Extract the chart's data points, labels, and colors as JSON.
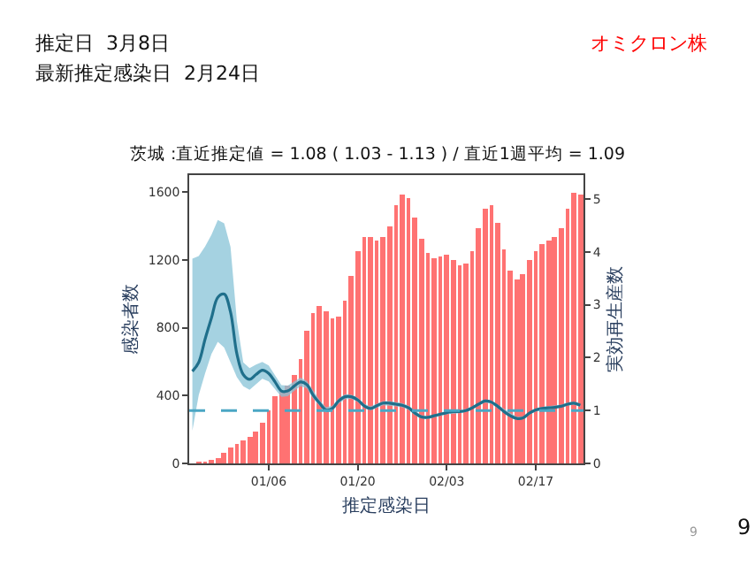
{
  "chart_data": {
    "type": "bar",
    "title": "茨城 :直近推定値 = 1.08 ( 1.03 - 1.13 ) / 直近1週平均 = 1.09",
    "xlabel": "推定感染日",
    "ylabel": "感染者数",
    "y2label": "実効再生産数",
    "annotations": [
      "推定日  3月8日",
      "最新推定感染日  2月24日",
      "オミクロン株",
      "9",
      "9"
    ],
    "categories": [
      null,
      null,
      null,
      null,
      null,
      null,
      null,
      null,
      null,
      null,
      null,
      null,
      "01/06",
      null,
      null,
      null,
      null,
      null,
      null,
      null,
      null,
      null,
      null,
      null,
      null,
      null,
      "01/20",
      null,
      null,
      null,
      null,
      null,
      null,
      null,
      null,
      null,
      null,
      null,
      null,
      null,
      "02/03",
      null,
      null,
      null,
      null,
      null,
      null,
      null,
      null,
      null,
      null,
      null,
      null,
      null,
      "02/17",
      null,
      null,
      null,
      null,
      null,
      null,
      null
    ],
    "ylim": [
      0,
      1700
    ],
    "yticks": [
      0,
      400,
      800,
      1200,
      1600
    ],
    "y2lim": [
      0,
      5.45
    ],
    "y2ticks": [
      0,
      1,
      2,
      3,
      4,
      5
    ],
    "marker": "none",
    "series": [
      {
        "color": "#ff7272",
        "values": [
          null,
          10,
          10,
          20,
          30,
          60,
          90,
          110,
          140,
          160,
          190,
          240,
          310,
          400,
          430,
          460,
          520,
          620,
          780,
          890,
          930,
          900,
          860,
          870,
          960,
          1110,
          1250,
          1330,
          1330,
          1310,
          1330,
          1400,
          1520,
          1590,
          1560,
          1450,
          1320,
          1240,
          1210,
          1220,
          1230,
          1200,
          1170,
          1180,
          1250,
          1390,
          1500,
          1520,
          1420,
          1260,
          1140,
          1080,
          1120,
          1200,
          1250,
          1290,
          1310,
          1330,
          1390,
          1500,
          1600,
          1590
        ]
      },
      {
        "type": "line",
        "axis": "y2",
        "color": "#1f6f8b",
        "line_style": "solid",
        "values": [
          1.74,
          1.91,
          2.35,
          2.75,
          3.14,
          3.2,
          2.86,
          2.07,
          1.68,
          1.59,
          1.68,
          1.76,
          1.7,
          1.54,
          1.37,
          1.37,
          1.46,
          1.54,
          1.49,
          1.29,
          1.14,
          1.01,
          1.04,
          1.18,
          1.26,
          1.26,
          1.2,
          1.09,
          1.04,
          1.09,
          1.14,
          1.14,
          1.12,
          1.1,
          1.05,
          0.95,
          0.88,
          0.87,
          0.9,
          0.93,
          0.96,
          0.98,
          0.98,
          1.0,
          1.05,
          1.12,
          1.18,
          1.16,
          1.08,
          0.98,
          0.9,
          0.85,
          0.86,
          0.95,
          1.01,
          1.04,
          1.05,
          1.06,
          1.08,
          1.12,
          1.14,
          1.1
        ],
        "lower": [
          0.62,
          1.29,
          1.7,
          2.07,
          2.3,
          2.19,
          1.91,
          1.63,
          1.46,
          1.39,
          1.5,
          1.6,
          1.55,
          1.42,
          1.26,
          1.27,
          1.37,
          1.46,
          1.42,
          1.22,
          1.08,
          0.96,
          0.99,
          1.13,
          1.21,
          1.22,
          1.16,
          1.05,
          1.0,
          1.05,
          1.1,
          1.1,
          1.08,
          1.06,
          1.01,
          0.91,
          0.85,
          0.84,
          0.87,
          0.9,
          0.93,
          0.95,
          0.95,
          0.97,
          1.02,
          1.09,
          1.15,
          1.13,
          1.05,
          0.95,
          0.87,
          0.82,
          0.83,
          0.92,
          0.98,
          1.01,
          1.02,
          1.03,
          1.05,
          1.09,
          1.11,
          1.07
        ],
        "upper": [
          3.87,
          3.92,
          4.1,
          4.32,
          4.6,
          4.54,
          4.09,
          2.69,
          1.91,
          1.8,
          1.87,
          1.92,
          1.85,
          1.67,
          1.48,
          1.47,
          1.55,
          1.62,
          1.56,
          1.36,
          1.2,
          1.06,
          1.09,
          1.23,
          1.31,
          1.3,
          1.24,
          1.13,
          1.08,
          1.13,
          1.18,
          1.18,
          1.16,
          1.14,
          1.09,
          0.99,
          0.91,
          0.9,
          0.93,
          0.96,
          0.99,
          1.01,
          1.01,
          1.03,
          1.08,
          1.15,
          1.21,
          1.19,
          1.11,
          1.01,
          0.93,
          0.88,
          0.89,
          0.98,
          1.04,
          1.07,
          1.08,
          1.09,
          1.11,
          1.15,
          1.17,
          1.13
        ]
      }
    ],
    "ref_lines": [
      {
        "axis": "y2",
        "value": 1,
        "color": "#4aa6c4",
        "line_style": "dashed"
      }
    ]
  }
}
